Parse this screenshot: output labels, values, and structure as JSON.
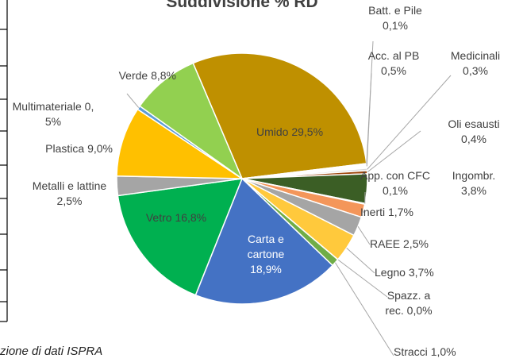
{
  "chart_data": {
    "type": "pie",
    "title": "Suddivisione % RD",
    "categories": [
      "Umido",
      "Batt. e Pile",
      "Acc. al PB",
      "Medicinali",
      "Oli esausti",
      "Ingombr.",
      "App. con CFC",
      "Inerti",
      "RAEE",
      "Legno",
      "Spazz. a rec.",
      "Stracci",
      "Carta e cartone",
      "Vetro",
      "Metalli e lattine",
      "Plastica",
      "Multimateriale",
      "Verde"
    ],
    "values": [
      29.5,
      0.1,
      0.5,
      0.3,
      0.4,
      3.8,
      0.1,
      1.7,
      2.5,
      3.7,
      0.0,
      1.0,
      18.9,
      16.8,
      2.5,
      9.0,
      0.5,
      8.8
    ],
    "value_labels": [
      "29,5%",
      "0,1%",
      "0,5%",
      "0,3%",
      "0,4%",
      "3,8%",
      "0,1%",
      "1,7%",
      "2,5%",
      "3,7%",
      "0,0%",
      "1,0%",
      "18,9%",
      "16,8%",
      "2,5%",
      "9,0%",
      "0,5%",
      "8,8%"
    ],
    "colors": [
      "#bf9000",
      "#7f7f7f",
      "#ffffff",
      "#d9d9d9",
      "#9e480e",
      "#3b5e25",
      "#264478",
      "#f4965a",
      "#a5a5a5",
      "#ffc93c",
      "#5b9bd5",
      "#70ad47",
      "#4472c4",
      "#00b050",
      "#a5a5a5",
      "#ffc000",
      "#5b9bd5",
      "#92d050"
    ],
    "source": "zione di dati ISPRA"
  }
}
